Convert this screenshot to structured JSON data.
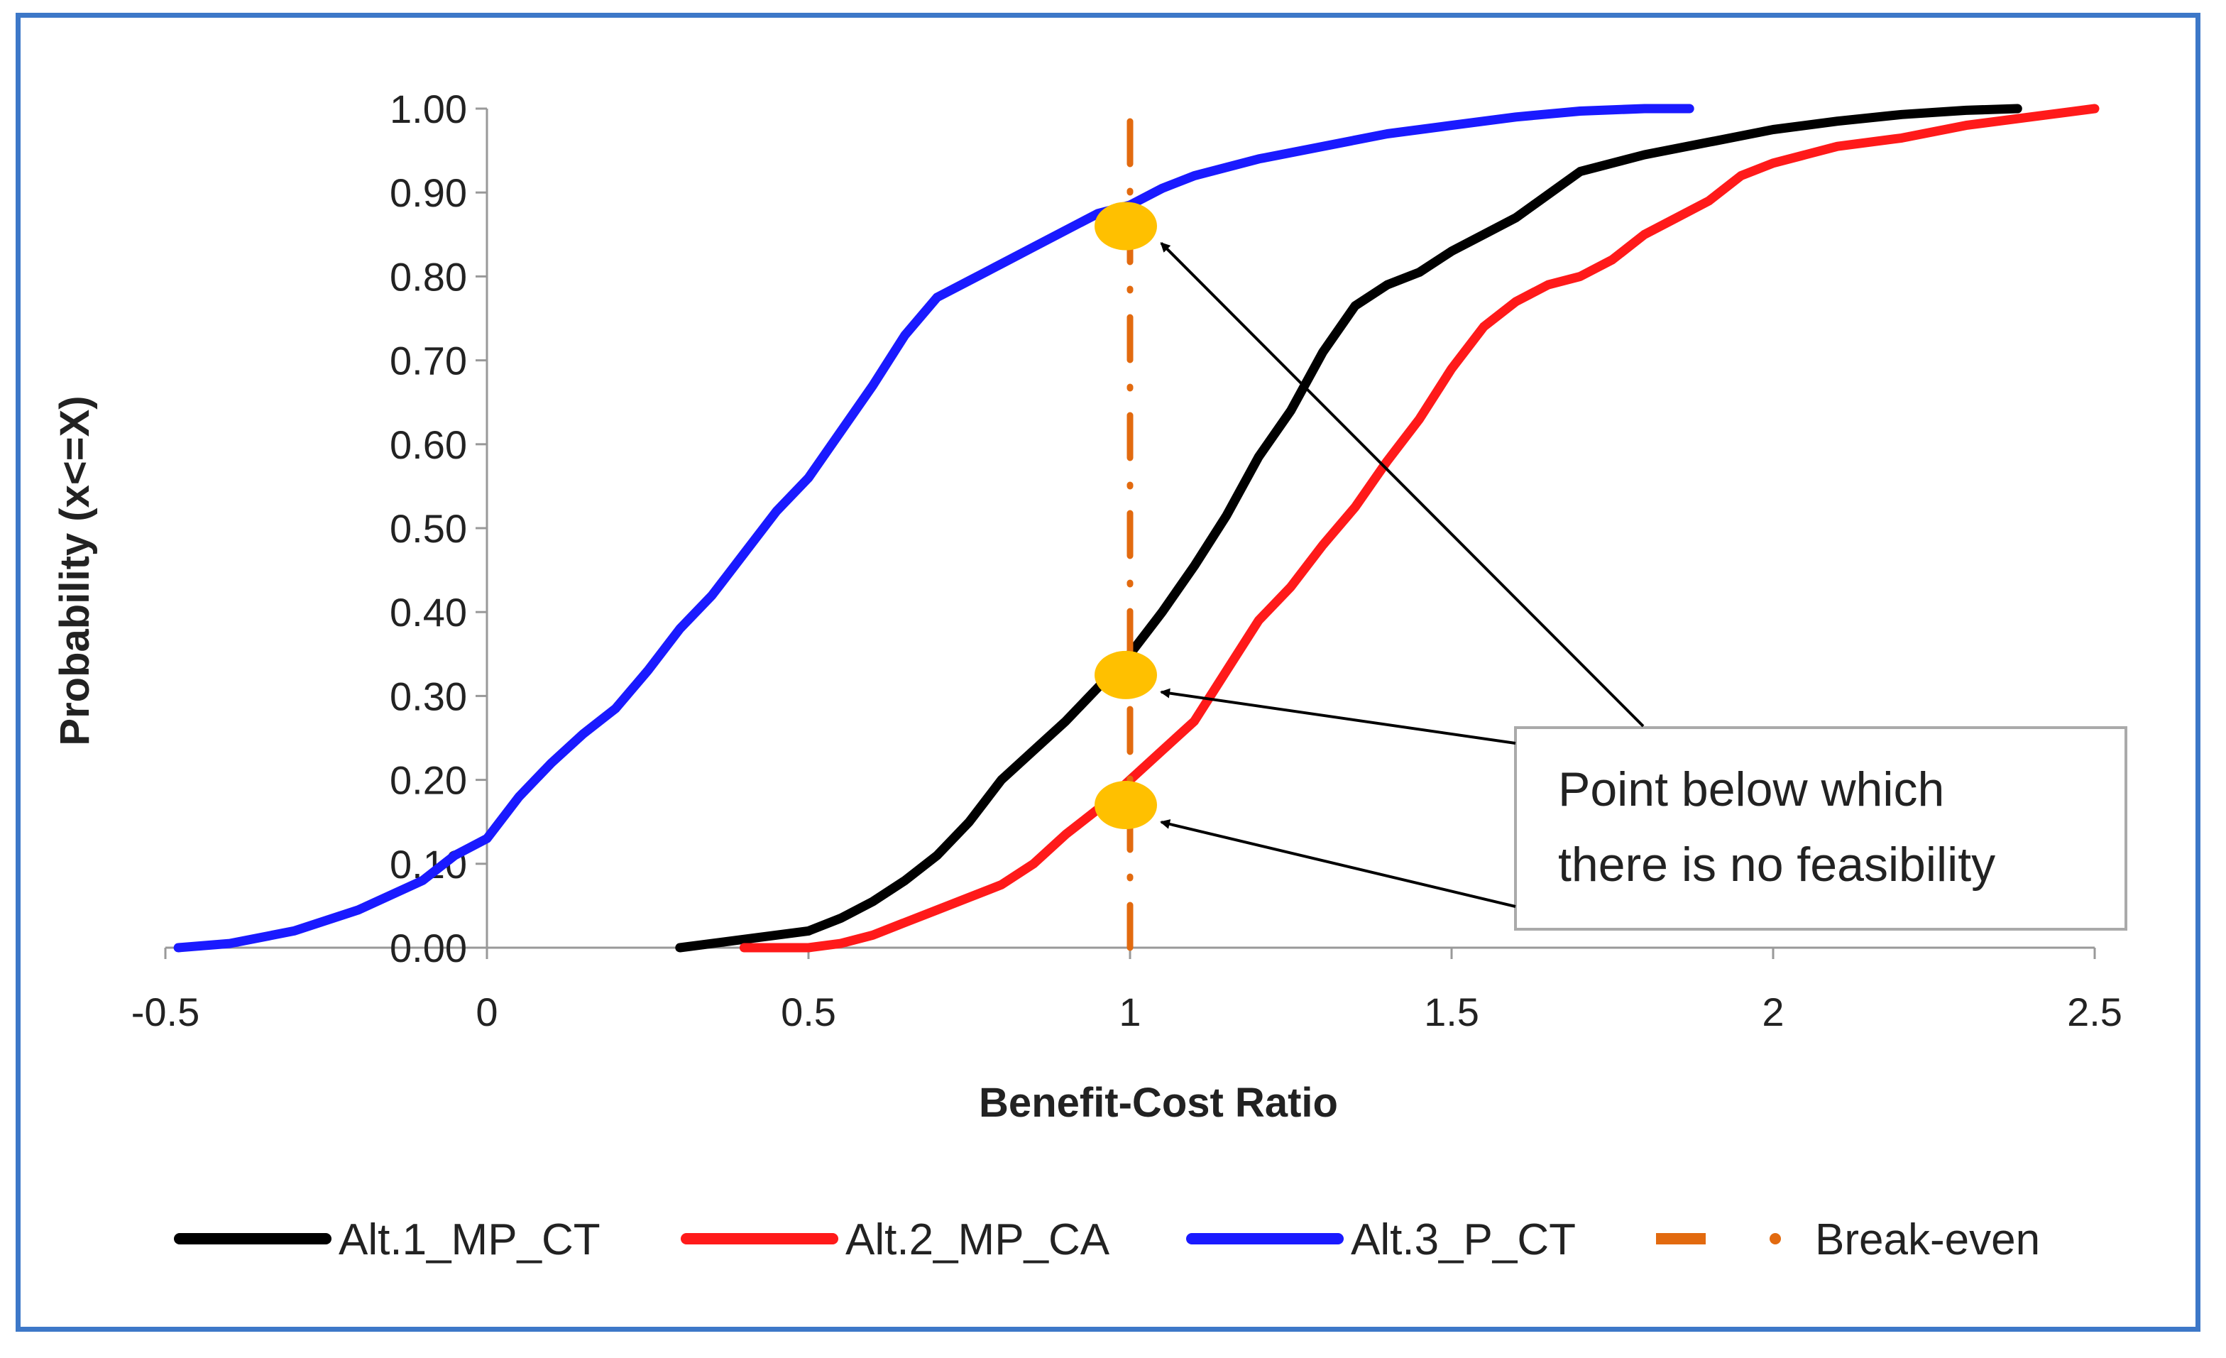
{
  "chart_data": {
    "type": "line",
    "title": "",
    "xlabel": "Benefit-Cost Ratio",
    "ylabel": "Probability (x<=X)",
    "xlim": [
      -0.5,
      2.5
    ],
    "ylim": [
      0,
      1
    ],
    "xticks": [
      "-0.5",
      "0",
      "0.5",
      "1",
      "1.5",
      "2",
      "2.5"
    ],
    "xtick_values": [
      -0.5,
      0,
      0.5,
      1,
      1.5,
      2,
      2.5
    ],
    "yticks": [
      "0.00",
      "0.10",
      "0.20",
      "0.30",
      "0.40",
      "0.50",
      "0.60",
      "0.70",
      "0.80",
      "0.90",
      "1.00"
    ],
    "ytick_values": [
      0,
      0.1,
      0.2,
      0.3,
      0.4,
      0.5,
      0.6,
      0.7,
      0.8,
      0.9,
      1.0
    ],
    "grid": false,
    "legend_position": "bottom",
    "series": [
      {
        "name": "Alt.1_MP_CT",
        "color": "#000000",
        "x": [
          0.3,
          0.4,
          0.5,
          0.55,
          0.6,
          0.65,
          0.7,
          0.75,
          0.8,
          0.85,
          0.9,
          0.95,
          1.0,
          1.05,
          1.1,
          1.15,
          1.2,
          1.25,
          1.3,
          1.35,
          1.4,
          1.45,
          1.5,
          1.55,
          1.6,
          1.7,
          1.8,
          1.9,
          2.0,
          2.1,
          2.2,
          2.3,
          2.38
        ],
        "y": [
          0.0,
          0.01,
          0.02,
          0.035,
          0.055,
          0.08,
          0.11,
          0.15,
          0.2,
          0.235,
          0.27,
          0.31,
          0.35,
          0.4,
          0.455,
          0.515,
          0.585,
          0.64,
          0.71,
          0.765,
          0.79,
          0.805,
          0.83,
          0.85,
          0.87,
          0.925,
          0.945,
          0.96,
          0.975,
          0.985,
          0.993,
          0.998,
          1.0
        ]
      },
      {
        "name": "Alt.2_MP_CA",
        "color": "#ff1a1a",
        "x": [
          0.4,
          0.5,
          0.55,
          0.6,
          0.65,
          0.7,
          0.75,
          0.8,
          0.85,
          0.9,
          0.95,
          1.0,
          1.05,
          1.1,
          1.15,
          1.2,
          1.25,
          1.3,
          1.35,
          1.4,
          1.45,
          1.5,
          1.55,
          1.6,
          1.65,
          1.7,
          1.75,
          1.8,
          1.85,
          1.9,
          1.95,
          2.0,
          2.05,
          2.1,
          2.2,
          2.3,
          2.4,
          2.5
        ],
        "y": [
          0.0,
          0.0,
          0.005,
          0.015,
          0.03,
          0.045,
          0.06,
          0.075,
          0.1,
          0.135,
          0.165,
          0.2,
          0.235,
          0.27,
          0.33,
          0.39,
          0.43,
          0.48,
          0.525,
          0.58,
          0.63,
          0.69,
          0.74,
          0.77,
          0.79,
          0.8,
          0.82,
          0.85,
          0.87,
          0.89,
          0.92,
          0.935,
          0.945,
          0.955,
          0.965,
          0.98,
          0.99,
          1.0
        ]
      },
      {
        "name": "Alt.3_P_CT",
        "color": "#1a1aff",
        "x": [
          -0.48,
          -0.4,
          -0.3,
          -0.2,
          -0.1,
          -0.05,
          0.0,
          0.05,
          0.1,
          0.15,
          0.2,
          0.25,
          0.3,
          0.35,
          0.4,
          0.45,
          0.5,
          0.55,
          0.6,
          0.65,
          0.7,
          0.75,
          0.8,
          0.85,
          0.9,
          0.95,
          1.0,
          1.05,
          1.1,
          1.2,
          1.3,
          1.4,
          1.5,
          1.6,
          1.7,
          1.8,
          1.87
        ],
        "y": [
          0.0,
          0.005,
          0.02,
          0.045,
          0.08,
          0.11,
          0.13,
          0.18,
          0.22,
          0.255,
          0.285,
          0.33,
          0.38,
          0.42,
          0.47,
          0.52,
          0.56,
          0.615,
          0.67,
          0.73,
          0.775,
          0.795,
          0.815,
          0.835,
          0.855,
          0.875,
          0.885,
          0.905,
          0.92,
          0.94,
          0.955,
          0.97,
          0.98,
          0.99,
          0.997,
          1.0,
          1.0
        ]
      },
      {
        "name": "Break-even",
        "color": "#e26a0f",
        "x": [
          1,
          1
        ],
        "y": [
          0,
          1
        ]
      }
    ],
    "highlight_points": [
      {
        "x": 1.0,
        "y": 0.86
      },
      {
        "x": 1.0,
        "y": 0.325
      },
      {
        "x": 1.0,
        "y": 0.17
      }
    ],
    "annotation": {
      "lines": [
        "Point below which",
        "there is no feasibility"
      ]
    }
  }
}
